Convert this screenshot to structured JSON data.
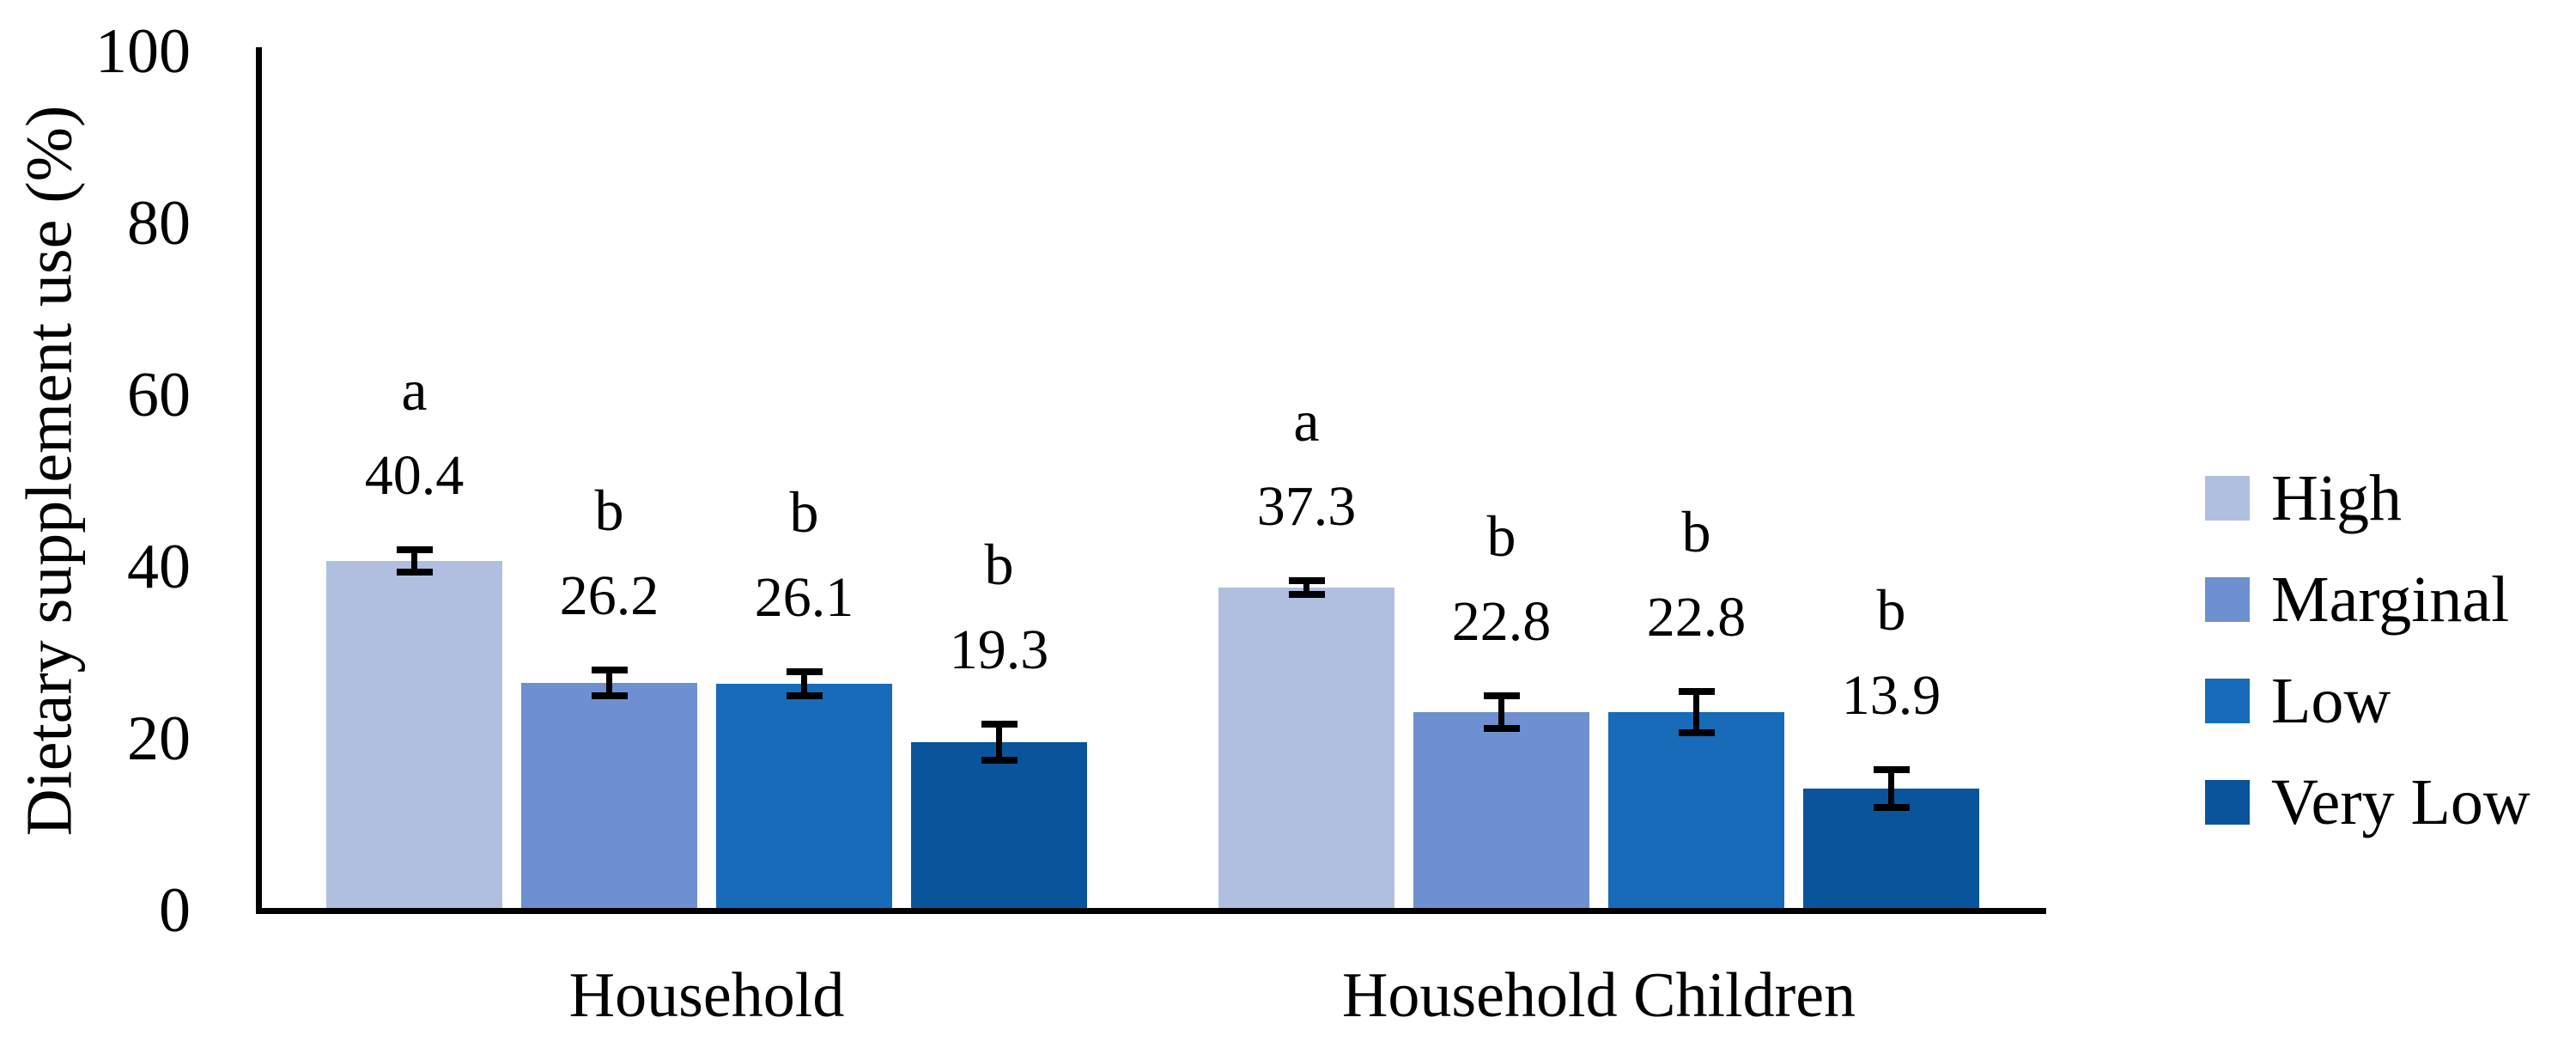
{
  "chart_data": {
    "type": "bar",
    "title": "",
    "xlabel": "",
    "ylabel": "Dietary supplement use (%)",
    "ylim": [
      0,
      100
    ],
    "yticks": [
      0,
      20,
      40,
      60,
      80,
      100
    ],
    "grid": false,
    "error_bars": true,
    "legend_position": "right",
    "categories": [
      "Household",
      "Household Children"
    ],
    "series": [
      {
        "name": "High",
        "color": "#b0bfe0",
        "values": [
          40.4,
          37.3
        ],
        "errors": [
          1.3,
          0.8
        ],
        "sig_letters": [
          "a",
          "a"
        ]
      },
      {
        "name": "Marginal",
        "color": "#6e90d0",
        "values": [
          26.2,
          22.8
        ],
        "errors": [
          1.5,
          1.9
        ],
        "sig_letters": [
          "b",
          "b"
        ]
      },
      {
        "name": "Low",
        "color": "#176bb9",
        "values": [
          26.1,
          22.8
        ],
        "errors": [
          1.4,
          2.4
        ],
        "sig_letters": [
          "b",
          "b"
        ]
      },
      {
        "name": "Very Low",
        "color": "#0a549c",
        "values": [
          19.3,
          13.9
        ],
        "errors": [
          2.1,
          2.2
        ],
        "sig_letters": [
          "b",
          "b"
        ]
      }
    ]
  }
}
